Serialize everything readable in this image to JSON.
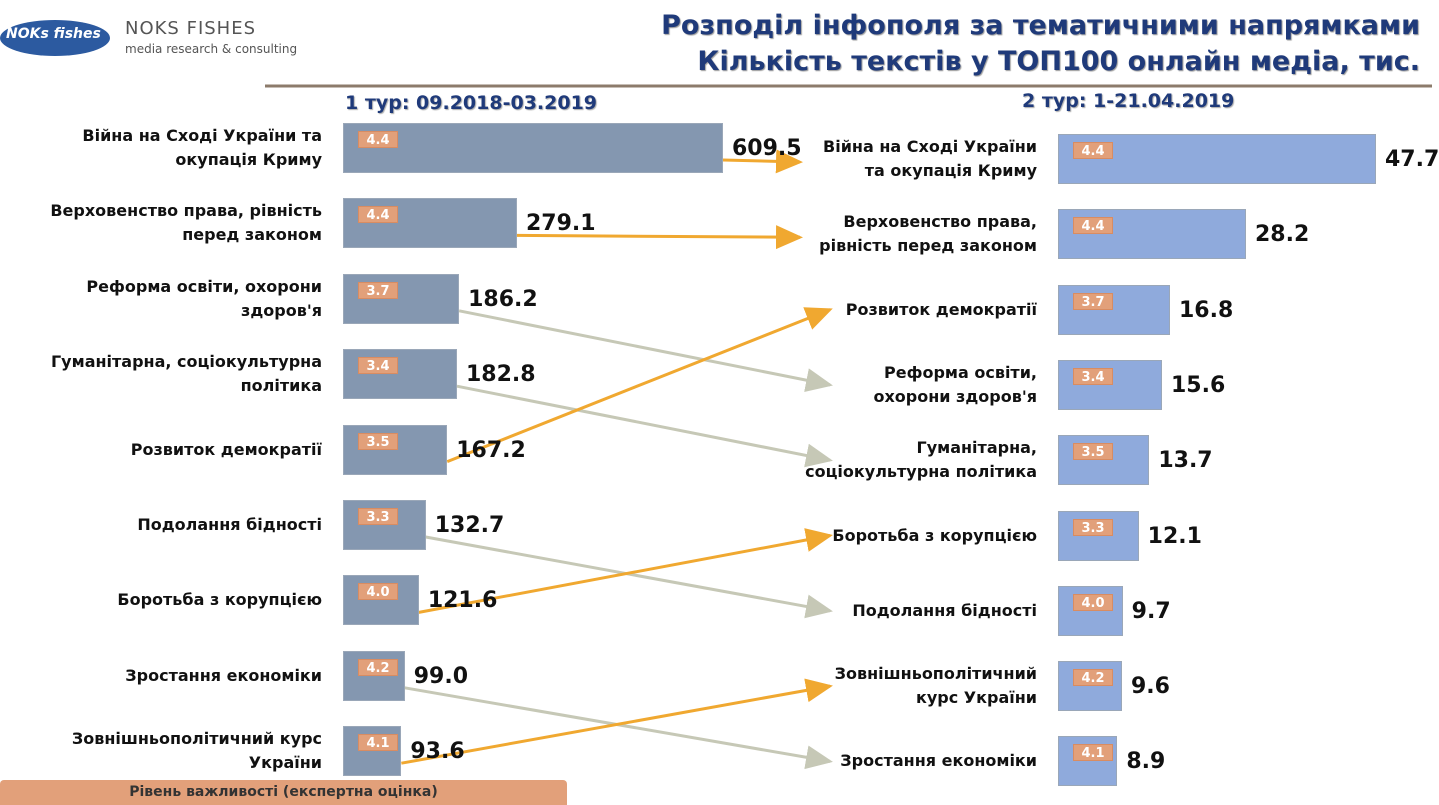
{
  "header": {
    "logo_text": "NOKs fishes",
    "brand": "NOKS FISHES",
    "tagline": "media research & consulting",
    "title": [
      "Розподіл інфополя за тематичними напрямками",
      "Кількість текстів у ТОП100 онлайн медіа, тис."
    ]
  },
  "chart_data": [
    {
      "type": "bar",
      "orientation": "horizontal",
      "title": "1 тур: 09.2018-03.2019",
      "color": "#8497b0",
      "categories": [
        "Війна на Сході України та окупація Криму",
        "Верховенство права, рівність перед законом",
        "Реформа освіти, охорони здоров'я",
        "Гуманітарна, соціокультурна політика",
        "Розвиток демократії",
        "Подолання бідності",
        "Боротьба з корупцією",
        "Зростання економіки",
        "Зовнішньополітичний курс України"
      ],
      "values": [
        609.5,
        279.1,
        186.2,
        182.8,
        167.2,
        132.7,
        121.6,
        99.0,
        93.6
      ],
      "value_labels": [
        "609.5",
        "279.1",
        "186.2",
        "182.8",
        "167.2",
        "132.7",
        "121.6",
        "99.0",
        "93.6"
      ],
      "importance": [
        4.4,
        4.4,
        3.7,
        3.4,
        3.5,
        3.3,
        4.0,
        4.2,
        4.1
      ],
      "importance_labels": [
        "4.4",
        "4.4",
        "3.7",
        "3.4",
        "3.5",
        "3.3",
        "4.0",
        "4.2",
        "4.1"
      ]
    },
    {
      "type": "bar",
      "orientation": "horizontal",
      "title": "2 тур: 1-21.04.2019",
      "color": "#8faadc",
      "categories": [
        "Війна на Сході України та окупація Криму",
        "Верховенство права, рівність перед законом",
        "Розвиток демократії",
        "Реформа освіти, охорони здоров'я",
        "Гуманітарна, соціокультурна політика",
        "Боротьба з корупцією",
        "Подолання бідності",
        "Зовнішньополітичний курс України",
        "Зростання економіки"
      ],
      "values": [
        47.7,
        28.2,
        16.8,
        15.6,
        13.7,
        12.1,
        9.7,
        9.6,
        8.9
      ],
      "value_labels": [
        "47.7",
        "28.2",
        "16.8",
        "15.6",
        "13.7",
        "12.1",
        "9.7",
        "9.6",
        "8.9"
      ],
      "importance": [
        4.4,
        4.4,
        3.7,
        3.4,
        3.5,
        3.3,
        4.0,
        4.2,
        4.1
      ],
      "importance_labels": [
        "4.4",
        "4.4",
        "3.7",
        "3.4",
        "3.5",
        "3.3",
        "4.0",
        "4.2",
        "4.1"
      ]
    }
  ],
  "legend_note": "Рівень важливості (експертна оцінка)"
}
